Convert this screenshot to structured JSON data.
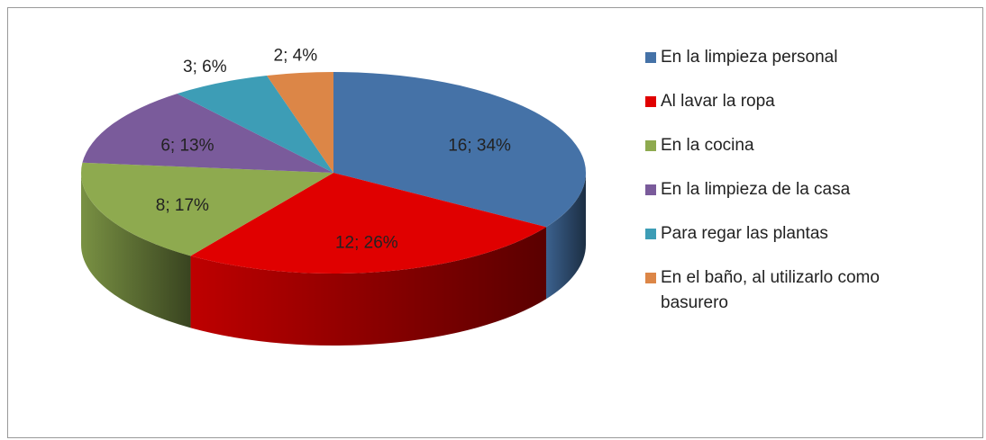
{
  "chart_data": {
    "type": "pie3d",
    "categories": [
      "En la limpieza personal",
      "Al lavar la ropa",
      "En la cocina",
      "En la limpieza de la casa",
      "Para regar las plantas",
      "En el baño, al utilizarlo como basurero"
    ],
    "values": [
      16,
      12,
      8,
      6,
      3,
      2
    ],
    "value_labels": [
      "16; 34%",
      "12; 26%",
      "8; 17%",
      "6; 13%",
      "3; 6%",
      "2; 4%"
    ],
    "colors": [
      "#4572a7",
      "#e00000",
      "#8eaa4f",
      "#7a5b9b",
      "#3d9db6",
      "#dc8647"
    ],
    "legend": "right"
  }
}
